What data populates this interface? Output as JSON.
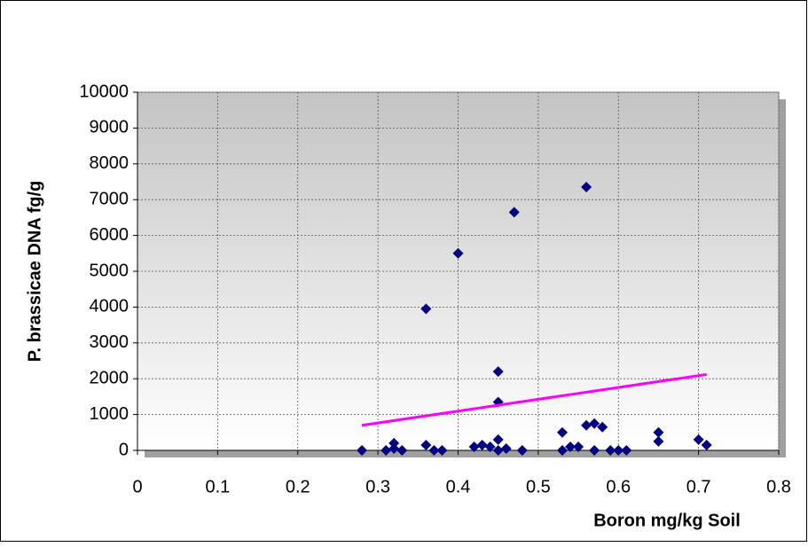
{
  "chart_data": {
    "type": "scatter",
    "x_label": "Boron mg/kg Soil",
    "y_label": "P. brassicae DNA fg/g",
    "xlim": [
      0,
      0.8
    ],
    "xticks": [
      0,
      0.1,
      0.2,
      0.3,
      0.4,
      0.5,
      0.6,
      0.7,
      0.8
    ],
    "ylim": [
      0,
      10000
    ],
    "yticks": [
      0,
      1000,
      2000,
      3000,
      4000,
      5000,
      6000,
      7000,
      8000,
      9000,
      10000
    ],
    "grid": true,
    "series": [
      {
        "type": "scatter",
        "color": "#000080",
        "x": [
          0.28,
          0.36,
          0.4,
          0.47,
          0.56,
          0.45,
          0.45,
          0.31,
          0.32,
          0.32,
          0.33,
          0.36,
          0.37,
          0.38,
          0.42,
          0.43,
          0.44,
          0.45,
          0.45,
          0.46,
          0.48,
          0.53,
          0.53,
          0.54,
          0.55,
          0.56,
          0.57,
          0.57,
          0.58,
          0.59,
          0.6,
          0.61,
          0.65,
          0.65,
          0.7,
          0.71
        ],
        "values": [
          0,
          3950,
          5500,
          6650,
          7350,
          2200,
          1350,
          0,
          200,
          50,
          0,
          150,
          0,
          0,
          100,
          150,
          100,
          300,
          0,
          50,
          0,
          500,
          0,
          100,
          100,
          700,
          750,
          0,
          650,
          0,
          0,
          0,
          500,
          250,
          300,
          150
        ]
      },
      {
        "type": "line",
        "color": "#ff00ff",
        "x": [
          0.28,
          0.71
        ],
        "values": [
          700,
          2120
        ]
      }
    ]
  }
}
